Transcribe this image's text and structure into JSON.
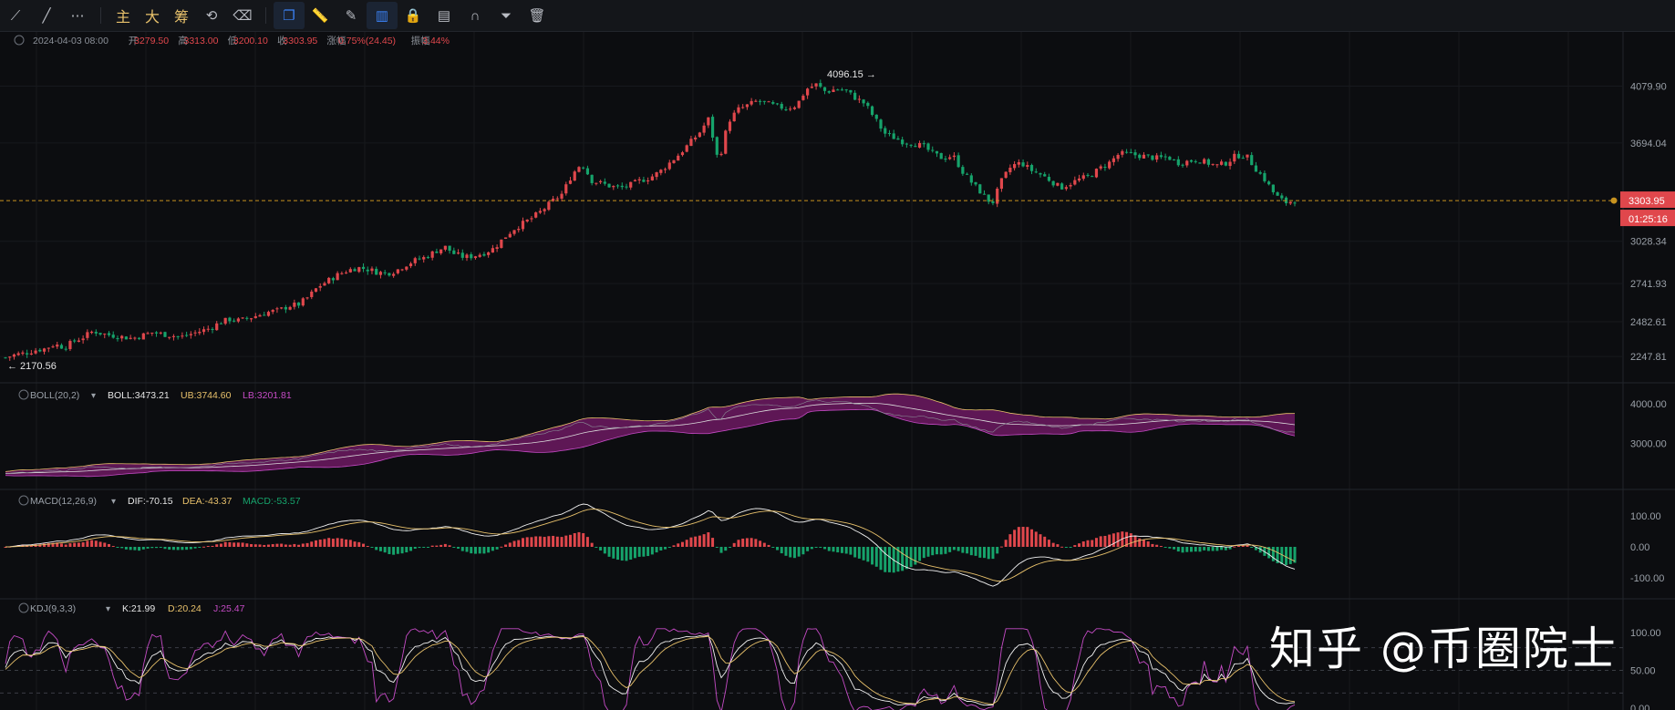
{
  "toolbar": {
    "items": [
      {
        "name": "trendline-icon",
        "glyph": "⟋"
      },
      {
        "name": "line-icon",
        "glyph": "╱"
      },
      {
        "name": "more-icon",
        "glyph": "⋯"
      }
    ],
    "zh_buttons": [
      "主",
      "大",
      "筹"
    ],
    "tools": [
      {
        "name": "replay-icon",
        "glyph": "⟲"
      },
      {
        "name": "eraser-icon",
        "glyph": "⌫"
      },
      {
        "name": "layers-icon",
        "glyph": "❐",
        "active": true
      },
      {
        "name": "ruler-icon",
        "glyph": "📏"
      },
      {
        "name": "brush-icon",
        "glyph": "✎"
      },
      {
        "name": "candles-icon",
        "glyph": "▥",
        "active": true
      },
      {
        "name": "lock-icon",
        "glyph": "🔒"
      },
      {
        "name": "chart-settings-icon",
        "glyph": "▤"
      },
      {
        "name": "magnet-icon",
        "glyph": "∩"
      },
      {
        "name": "filter-icon",
        "glyph": "⏷"
      },
      {
        "name": "trash-icon",
        "glyph": "🗑"
      }
    ]
  },
  "ohlc": {
    "date": "2024-04-03 08:00",
    "open_label": "开",
    "open": "3279.50",
    "high_label": "高",
    "high": "3313.00",
    "low_label": "低",
    "low": "3200.10",
    "close_label": "收",
    "close": "3303.95",
    "change_label": "涨幅",
    "change": "0.75%(24.45)",
    "amp_label": "振幅",
    "amp": "3.44%"
  },
  "price_axis": {
    "ticks": [
      "4079.90",
      "3694.04",
      "3028.34",
      "2741.93",
      "2482.61",
      "2247.81"
    ],
    "last_price": "3303.95",
    "countdown": "01:25:16",
    "hi_label": "4096.15",
    "lo_label": "2170.56"
  },
  "boll": {
    "title": "BOLL(20,2)",
    "mid": "BOLL:3473.21",
    "ub": "UB:3744.60",
    "lb": "LB:3201.81",
    "ticks": [
      "4000.00",
      "3000.00"
    ]
  },
  "macd": {
    "title": "MACD(12,26,9)",
    "dif": "DIF:-70.15",
    "dea": "DEA:-43.37",
    "macd": "MACD:-53.57",
    "ticks": [
      "100.00",
      "0.00",
      "-100.00"
    ]
  },
  "kdj": {
    "title": "KDJ(9,3,3)",
    "k": "K:21.99",
    "d": "D:20.24",
    "j": "J:25.47",
    "ticks": [
      "100.00",
      "50.00",
      "0.00"
    ]
  },
  "watermark": "知乎 @币圈院士",
  "colors": {
    "up": "#e0474c",
    "down": "#16a36b",
    "boll_band": "#6d1a61",
    "dif": "#f2f2f2",
    "dea": "#e8c16b",
    "j": "#c54bc5"
  },
  "chart_data": {
    "type": "candlestick",
    "price_range": [
      2100,
      4200
    ],
    "closes": [
      2240,
      2260,
      2270,
      2290,
      2300,
      2330,
      2310,
      2350,
      2380,
      2420,
      2400,
      2390,
      2380,
      2370,
      2390,
      2410,
      2400,
      2390,
      2380,
      2400,
      2420,
      2440,
      2480,
      2500,
      2490,
      2510,
      2530,
      2550,
      2560,
      2590,
      2600,
      2650,
      2720,
      2760,
      2800,
      2830,
      2850,
      2840,
      2820,
      2810,
      2830,
      2870,
      2900,
      2920,
      2960,
      2990,
      2940,
      2920,
      2930,
      2950,
      2980,
      3050,
      3110,
      3150,
      3190,
      3240,
      3300,
      3350,
      3480,
      3560,
      3440,
      3420,
      3400,
      3390,
      3410,
      3440,
      3460,
      3500,
      3560,
      3620,
      3690,
      3760,
      3860,
      3560,
      3840,
      3920,
      3950,
      3980,
      3960,
      3940,
      3930,
      3950,
      4060,
      4090,
      4040,
      4060,
      4050,
      4000,
      3960,
      3860,
      3760,
      3730,
      3700,
      3690,
      3670,
      3620,
      3590,
      3610,
      3500,
      3420,
      3350,
      3280,
      3440,
      3540,
      3560,
      3510,
      3480,
      3440,
      3390,
      3420,
      3450,
      3470,
      3520,
      3560,
      3620,
      3620,
      3610,
      3600,
      3590,
      3600,
      3560,
      3570,
      3580,
      3560,
      3540,
      3560,
      3610,
      3610,
      3520,
      3440,
      3340,
      3290,
      3304
    ]
  }
}
